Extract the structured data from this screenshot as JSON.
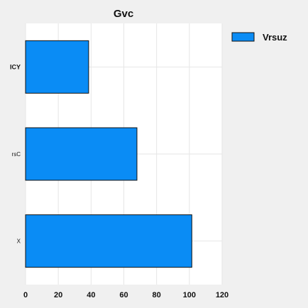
{
  "chart_data": {
    "type": "bar",
    "orientation": "horizontal",
    "title": "Gvc",
    "xlabel": "",
    "ylabel": "",
    "categories": [
      "ICY",
      "rsC",
      "X"
    ],
    "series": [
      {
        "name": "Vrsuz",
        "values": [
          38.5,
          68,
          101.5
        ],
        "color": "#0a8cf5"
      }
    ],
    "xlim": [
      0,
      120
    ],
    "x_ticks": [
      "0",
      "20",
      "40",
      "60",
      "80",
      "100",
      "120"
    ],
    "grid": true,
    "legend_position": "top-right"
  },
  "colors": {
    "background": "#f0f0f0",
    "plot_background": "#ffffff",
    "grid": "#e6e6e6",
    "bar_edge": "#111111",
    "text": "#111111"
  }
}
